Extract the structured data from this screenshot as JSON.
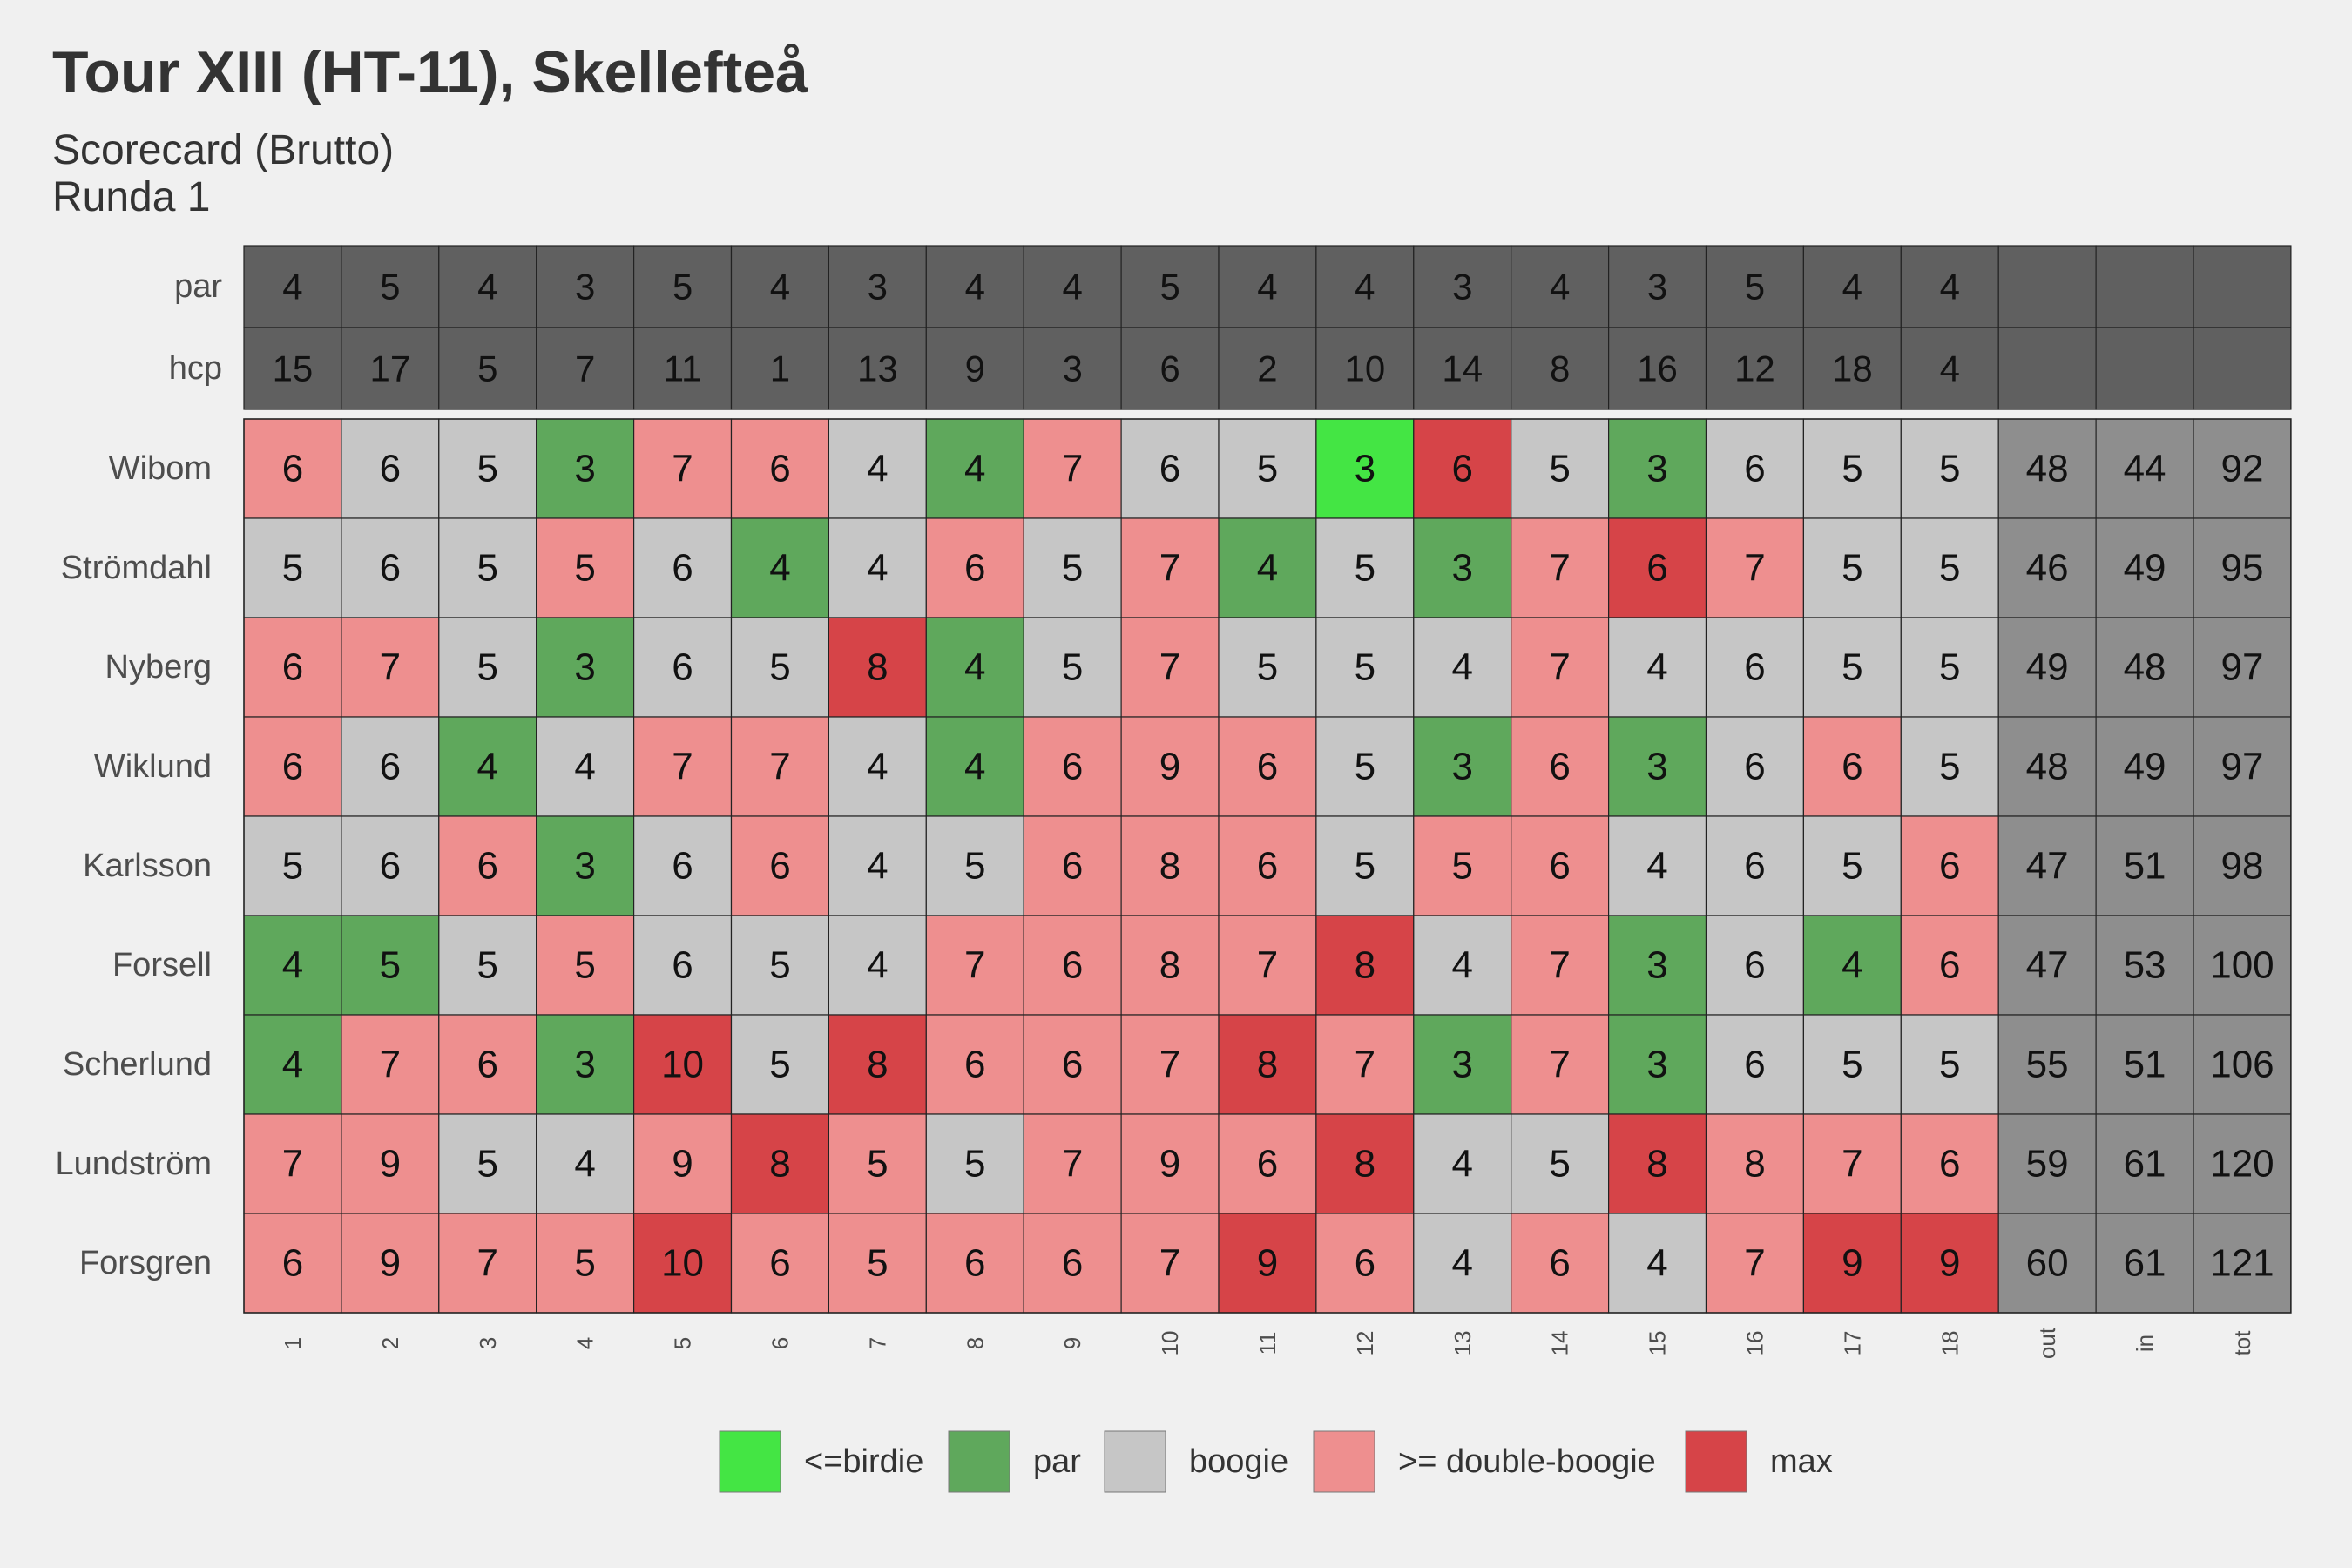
{
  "chart_data": {
    "type": "heatmap",
    "title": "Tour XIII (HT-11), Skellefteå",
    "subtitle": [
      "Scorecard (Brutto)",
      "Runda 1"
    ],
    "columns": [
      "1",
      "2",
      "3",
      "4",
      "5",
      "6",
      "7",
      "8",
      "9",
      "10",
      "11",
      "12",
      "13",
      "14",
      "15",
      "16",
      "17",
      "18",
      "out",
      "in",
      "tot"
    ],
    "header_rows": [
      {
        "label": "par",
        "values": [
          "4",
          "5",
          "4",
          "3",
          "5",
          "4",
          "3",
          "4",
          "4",
          "5",
          "4",
          "4",
          "3",
          "4",
          "3",
          "5",
          "4",
          "4",
          "",
          "",
          ""
        ]
      },
      {
        "label": "hcp",
        "values": [
          "15",
          "17",
          "5",
          "7",
          "11",
          "1",
          "13",
          "9",
          "3",
          "6",
          "2",
          "10",
          "14",
          "8",
          "16",
          "12",
          "18",
          "4",
          "",
          "",
          ""
        ]
      }
    ],
    "players": [
      {
        "name": "Wibom",
        "scores": [
          "6",
          "6",
          "5",
          "3",
          "7",
          "6",
          "4",
          "4",
          "7",
          "6",
          "5",
          "3",
          "6",
          "5",
          "3",
          "6",
          "5",
          "5"
        ],
        "totals": [
          "48",
          "44",
          "92"
        ]
      },
      {
        "name": "Strömdahl",
        "scores": [
          "5",
          "6",
          "5",
          "5",
          "6",
          "4",
          "4",
          "6",
          "5",
          "7",
          "4",
          "5",
          "3",
          "7",
          "6",
          "7",
          "5",
          "5"
        ],
        "totals": [
          "46",
          "49",
          "95"
        ]
      },
      {
        "name": "Nyberg",
        "scores": [
          "6",
          "7",
          "5",
          "3",
          "6",
          "5",
          "8",
          "4",
          "5",
          "7",
          "5",
          "5",
          "4",
          "7",
          "4",
          "6",
          "5",
          "5"
        ],
        "totals": [
          "49",
          "48",
          "97"
        ]
      },
      {
        "name": "Wiklund",
        "scores": [
          "6",
          "6",
          "4",
          "4",
          "7",
          "7",
          "4",
          "4",
          "6",
          "9",
          "6",
          "5",
          "3",
          "6",
          "3",
          "6",
          "6",
          "5"
        ],
        "totals": [
          "48",
          "49",
          "97"
        ]
      },
      {
        "name": "Karlsson",
        "scores": [
          "5",
          "6",
          "6",
          "3",
          "6",
          "6",
          "4",
          "5",
          "6",
          "8",
          "6",
          "5",
          "5",
          "6",
          "4",
          "6",
          "5",
          "6"
        ],
        "totals": [
          "47",
          "51",
          "98"
        ]
      },
      {
        "name": "Forsell",
        "scores": [
          "4",
          "5",
          "5",
          "5",
          "6",
          "5",
          "4",
          "7",
          "6",
          "8",
          "7",
          "8",
          "4",
          "7",
          "3",
          "6",
          "4",
          "6"
        ],
        "totals": [
          "47",
          "53",
          "100"
        ]
      },
      {
        "name": "Scherlund",
        "scores": [
          "4",
          "7",
          "6",
          "3",
          "10",
          "5",
          "8",
          "6",
          "6",
          "7",
          "8",
          "7",
          "3",
          "7",
          "3",
          "6",
          "5",
          "5"
        ],
        "totals": [
          "55",
          "51",
          "106"
        ]
      },
      {
        "name": "Lundström",
        "scores": [
          "7",
          "9",
          "5",
          "4",
          "9",
          "8",
          "5",
          "5",
          "7",
          "9",
          "6",
          "8",
          "4",
          "5",
          "8",
          "8",
          "7",
          "6"
        ],
        "totals": [
          "59",
          "61",
          "120"
        ]
      },
      {
        "name": "Forsgren",
        "scores": [
          "6",
          "9",
          "7",
          "5",
          "10",
          "6",
          "5",
          "6",
          "6",
          "7",
          "9",
          "6",
          "4",
          "6",
          "4",
          "7",
          "9",
          "9"
        ],
        "totals": [
          "60",
          "61",
          "121"
        ]
      }
    ],
    "categories": [
      {
        "label": "<=birdie",
        "color": "#44e544"
      },
      {
        "label": "par",
        "color": "#5fa85c"
      },
      {
        "label": "boogie",
        "color": "#c6c6c6"
      },
      {
        "label": ">= double-boogie",
        "color": "#ee8f8f"
      },
      {
        "label": "max",
        "color": "#d64448"
      }
    ],
    "colors": {
      "header": "#606060",
      "totals": "#8e8e8e",
      "grid": "#222222"
    },
    "legend": "bottom"
  }
}
